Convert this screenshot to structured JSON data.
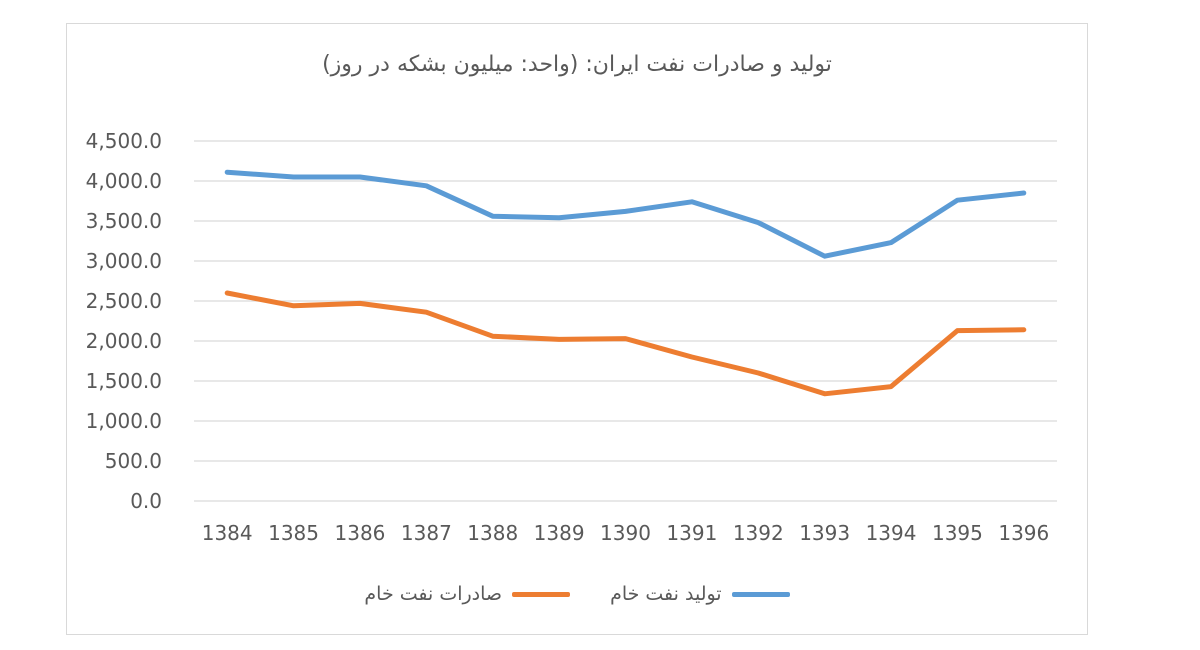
{
  "header_fragment": "",
  "chart_data": {
    "type": "line",
    "title": "تولید و صادرات نفت ایران: (واحد: میلیون بشکه در روز)",
    "categories": [
      "1384",
      "1385",
      "1386",
      "1387",
      "1388",
      "1389",
      "1390",
      "1391",
      "1392",
      "1393",
      "1394",
      "1395",
      "1396"
    ],
    "yticks": [
      "0.0",
      "500.0",
      "1,000.0",
      "1,500.0",
      "2,000.0",
      "2,500.0",
      "3,000.0",
      "3,500.0",
      "4,000.0",
      "4,500.0"
    ],
    "ylim": [
      0,
      4500
    ],
    "grid": true,
    "legend_position": "bottom",
    "series": [
      {
        "name": "تولید نفت خام",
        "color": "#5b9bd5",
        "values": [
          4110,
          4050,
          4050,
          3940,
          3560,
          3540,
          3620,
          3740,
          3480,
          3060,
          3230,
          3760,
          3850
        ]
      },
      {
        "name": "صادرات نفت خام",
        "color": "#ed7d31",
        "values": [
          2600,
          2440,
          2470,
          2360,
          2060,
          2020,
          2030,
          1800,
          1600,
          1340,
          1430,
          2130,
          2140
        ]
      }
    ]
  }
}
